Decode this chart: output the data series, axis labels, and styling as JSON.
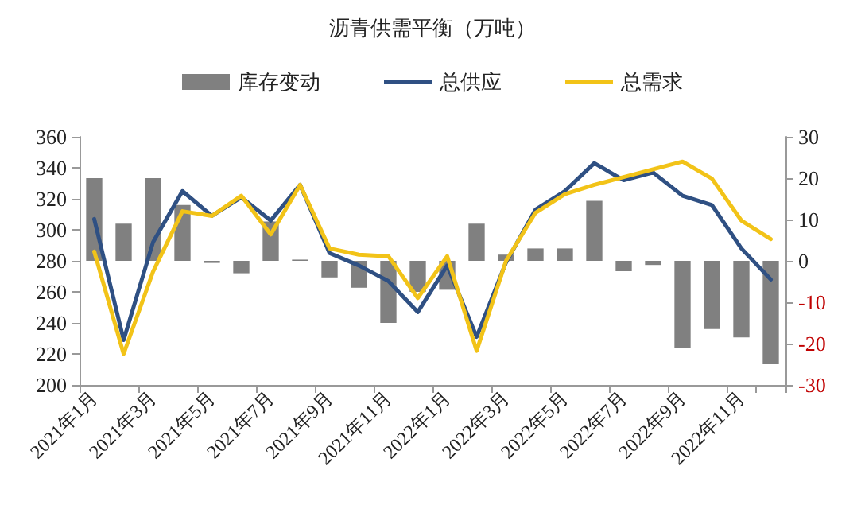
{
  "chart_data": {
    "type": "bar",
    "title": "沥青供需平衡（万吨）",
    "categories": [
      "2021年1月",
      null,
      "2021年3月",
      null,
      "2021年5月",
      null,
      "2021年7月",
      null,
      "2021年9月",
      null,
      "2021年11月",
      null,
      "2022年1月",
      null,
      "2022年3月",
      null,
      "2022年5月",
      null,
      "2022年7月",
      null,
      "2022年9月",
      null,
      "2022年11月",
      null
    ],
    "series": [
      {
        "name": "库存变动",
        "axis": "y2",
        "color": "#808080",
        "values": [
          20,
          9,
          20,
          13.5,
          -0.5,
          -3,
          9.5,
          0.3,
          -4,
          -6.5,
          -15,
          -7.5,
          -7,
          9,
          1.5,
          3,
          3,
          14.5,
          -2.5,
          -1,
          -21,
          -16.5,
          -18.5,
          -25
        ]
      },
      {
        "name": "总供应",
        "type": "line",
        "color": "#2f5083",
        "values": [
          307,
          229,
          292,
          325,
          309,
          321,
          306,
          329,
          285,
          277,
          267,
          247,
          277,
          231,
          279,
          313,
          325,
          343,
          332,
          337,
          322,
          316,
          288,
          268
        ]
      },
      {
        "name": "总需求",
        "type": "line",
        "color": "#f2c318",
        "values": [
          286,
          220,
          273,
          312,
          309,
          322,
          297,
          329,
          288,
          284,
          283,
          256,
          283,
          222,
          280,
          311,
          323,
          329,
          334,
          339,
          344,
          333,
          306,
          294
        ]
      }
    ],
    "ylim": [
      200,
      360
    ],
    "yticks": [
      200,
      220,
      240,
      260,
      280,
      300,
      320,
      340,
      360
    ],
    "y2lim": [
      -30,
      30
    ],
    "y2ticks": [
      -30,
      -20,
      -10,
      0,
      10,
      20,
      30
    ],
    "legend": "top",
    "grid": false,
    "marker": "none",
    "line_style": "solid"
  }
}
